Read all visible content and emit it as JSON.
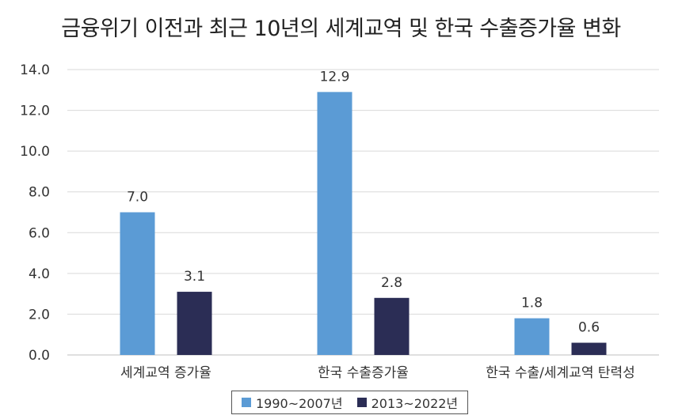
{
  "chart_data": {
    "type": "bar",
    "title": "금융위기 이전과 최근 10년의 세계교역 및 한국 수출증가율 변화",
    "categories": [
      "세계교역 증가율",
      "한국 수출증가율",
      "한국 수출/세계교역 탄력성"
    ],
    "series": [
      {
        "name": "1990~2007년",
        "color": "#5B9BD5",
        "values": [
          7.0,
          12.9,
          1.8
        ],
        "labels": [
          "7.0",
          "12.9",
          "1.8"
        ]
      },
      {
        "name": "2013~2022년",
        "color": "#2B2D55",
        "values": [
          3.1,
          2.8,
          0.6
        ],
        "labels": [
          "3.1",
          "2.8",
          "0.6"
        ]
      }
    ],
    "ylim": [
      0,
      14
    ],
    "yticks": [
      "0.0",
      "2.0",
      "4.0",
      "6.0",
      "8.0",
      "10.0",
      "12.0",
      "14.0"
    ],
    "xlabel": "",
    "ylabel": "",
    "grid": true,
    "legend_position": "bottom"
  }
}
